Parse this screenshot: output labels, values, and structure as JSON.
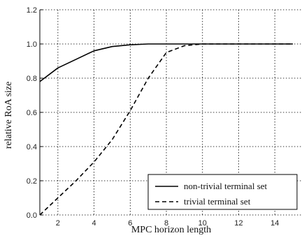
{
  "chart_data": {
    "type": "line",
    "title": "",
    "xlabel": "MPC horizon length",
    "ylabel": "relative RoA size",
    "xlim": [
      1,
      15.5
    ],
    "ylim": [
      0,
      1.2
    ],
    "xticks": [
      2,
      4,
      6,
      8,
      10,
      12,
      14
    ],
    "xtick_labels": [
      "2",
      "4",
      "6",
      "8",
      "10",
      "12",
      "14"
    ],
    "yticks": [
      0,
      0.2,
      0.4,
      0.6,
      0.8,
      1.0,
      1.2
    ],
    "ytick_labels": [
      "0.0",
      "0.2",
      "0.4",
      "0.6",
      "0.8",
      "1.0",
      "1.2"
    ],
    "grid": true,
    "legend_position": "bottom-right",
    "series": [
      {
        "name": "non-trivial terminal set",
        "line_style": "solid",
        "color": "#000000",
        "x": [
          1,
          2,
          3,
          4,
          5,
          6,
          7,
          8,
          9,
          10,
          11,
          12,
          13,
          14,
          15
        ],
        "y": [
          0.78,
          0.86,
          0.91,
          0.96,
          0.985,
          0.995,
          1.0,
          1.0,
          1.0,
          1.0,
          1.0,
          1.0,
          1.0,
          1.0,
          1.0
        ]
      },
      {
        "name": "trivial terminal set",
        "line_style": "dashed",
        "color": "#000000",
        "x": [
          1,
          2,
          3,
          4,
          5,
          6,
          7,
          8,
          9,
          10,
          11,
          12,
          13,
          14,
          15
        ],
        "y": [
          0.0,
          0.1,
          0.2,
          0.31,
          0.44,
          0.61,
          0.8,
          0.95,
          0.99,
          1.0,
          1.0,
          1.0,
          1.0,
          1.0,
          1.0
        ]
      }
    ]
  }
}
